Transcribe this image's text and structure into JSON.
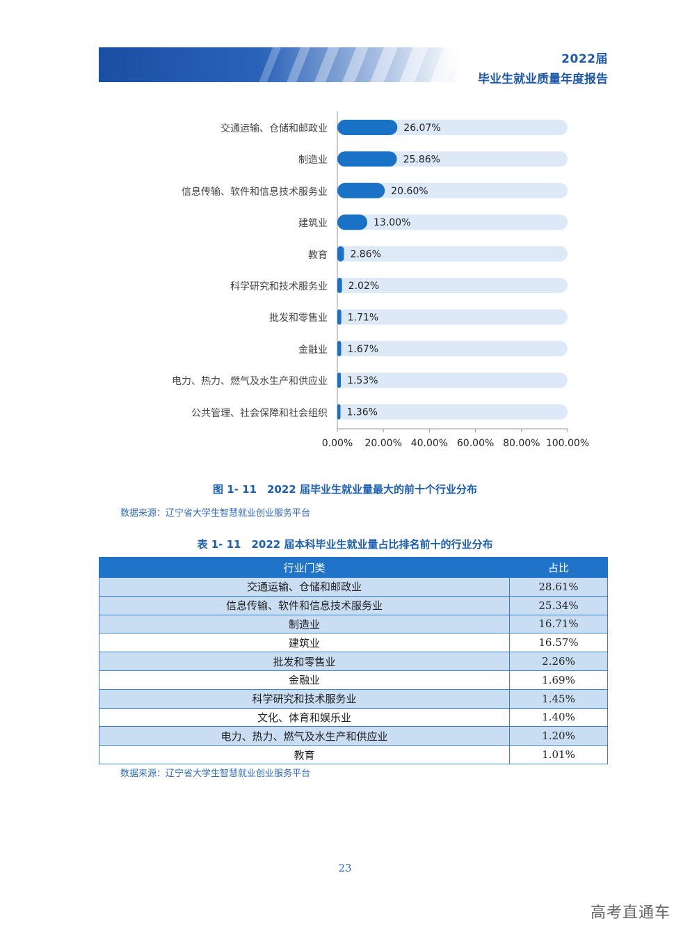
{
  "header": {
    "year": "2022届",
    "report_title": "毕业生就业质量年度报告"
  },
  "chart_data": {
    "type": "bar",
    "orientation": "horizontal",
    "categories": [
      "交通运输、仓储和邮政业",
      "制造业",
      "信息传输、软件和信息技术服务业",
      "建筑业",
      "教育",
      "科学研究和技术服务业",
      "批发和零售业",
      "金融业",
      "电力、热力、燃气及水生产和供应业",
      "公共管理、社会保障和社会组织"
    ],
    "values": [
      26.07,
      25.86,
      20.6,
      13.0,
      2.86,
      2.02,
      1.71,
      1.67,
      1.53,
      1.36
    ],
    "value_labels": [
      "26.07%",
      "25.86%",
      "20.60%",
      "13.00%",
      "2.86%",
      "2.02%",
      "1.71%",
      "1.67%",
      "1.53%",
      "1.36%"
    ],
    "xticks": [
      "0.00%",
      "20.00%",
      "40.00%",
      "60.00%",
      "80.00%",
      "100.00%"
    ],
    "xlim": [
      0,
      100
    ],
    "bar_color": "#1a72c6",
    "track_color": "#dde9f6"
  },
  "figure_caption": "图 1- 11　2022 届毕业生就业量最大的前十个行业分布",
  "source_1": "数据来源：辽宁省大学生智慧就业创业服务平台",
  "table": {
    "caption": "表 1- 11　2022 届本科毕业生就业量占比排名前十的行业分布",
    "headers": [
      "行业门类",
      "占比"
    ],
    "rows": [
      [
        "交通运输、仓储和邮政业",
        "28.61%"
      ],
      [
        "信息传输、软件和信息技术服务业",
        "25.34%"
      ],
      [
        "制造业",
        "16.71%"
      ],
      [
        "建筑业",
        "16.57%"
      ],
      [
        "批发和零售业",
        "2.26%"
      ],
      [
        "金融业",
        "1.69%"
      ],
      [
        "科学研究和技术服务业",
        "1.45%"
      ],
      [
        "文化、体育和娱乐业",
        "1.40%"
      ],
      [
        "电力、热力、燃气及水生产和供应业",
        "1.20%"
      ],
      [
        "教育",
        "1.01%"
      ]
    ]
  },
  "source_2": "数据来源：辽宁省大学生智慧就业创业服务平台",
  "page_number": "23",
  "watermark": "高考直通车"
}
